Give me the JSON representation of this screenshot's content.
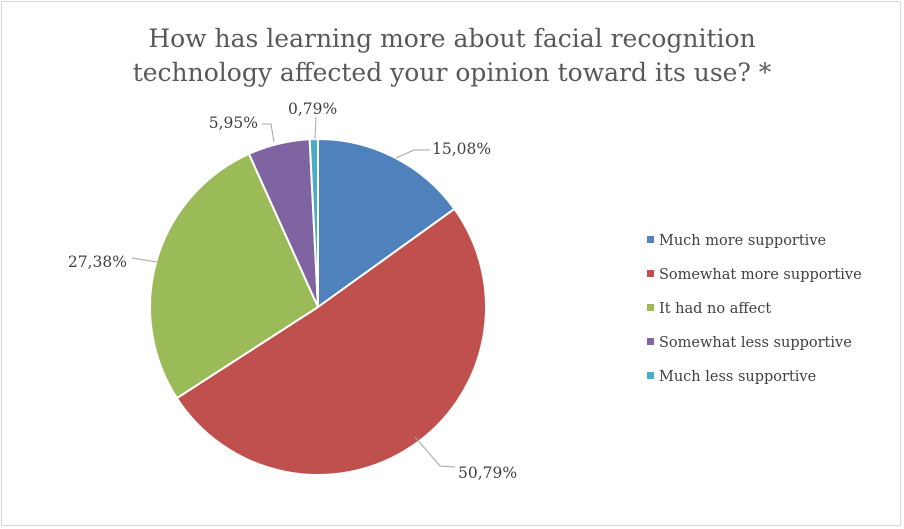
{
  "chart_data": {
    "type": "pie",
    "title": "How has learning more about facial recognition technology affected your opinion toward its use? *",
    "title_lines": [
      "How has learning more about facial recognition",
      "technology affected your opinion toward its use? *"
    ],
    "categories": [
      "Much more supportive",
      "Somewhat more supportive",
      "It had no affect",
      "Somewhat less supportive",
      "Much less supportive"
    ],
    "values": [
      15.08,
      50.79,
      27.38,
      5.95,
      0.79
    ],
    "value_labels": [
      "15,08%",
      "50,79%",
      "27,38%",
      "5,95%",
      "0,79%"
    ],
    "colors": [
      "#4F81BD",
      "#C0504D",
      "#9BBB59",
      "#8064A2",
      "#4BACC6"
    ],
    "legend_position": "right"
  }
}
